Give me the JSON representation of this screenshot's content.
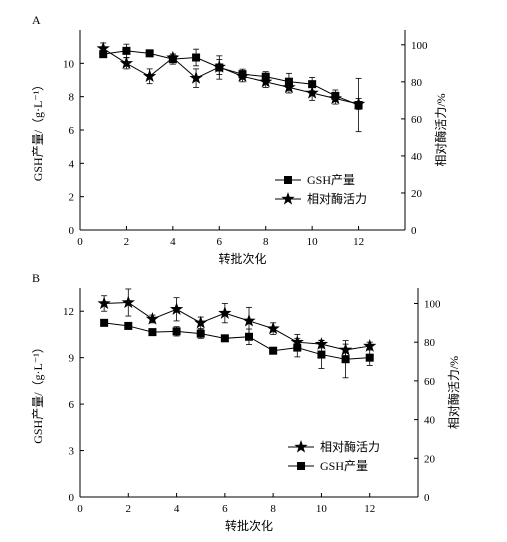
{
  "chart_data": [
    {
      "panel_label": "A",
      "type": "line",
      "xlabel": "转批次化",
      "ylabel": "GSH产量/（g·L⁻¹）",
      "y2label": "相对酶活力/%",
      "xlim": [
        0,
        14
      ],
      "ylim": [
        0,
        12
      ],
      "y2lim": [
        0,
        108
      ],
      "xticks": [
        0,
        2,
        4,
        6,
        8,
        10,
        12
      ],
      "yticks": [
        0,
        2,
        4,
        6,
        8,
        10
      ],
      "y2ticks": [
        0,
        20,
        40,
        60,
        80,
        100
      ],
      "legend_position": "bottom-right",
      "series": [
        {
          "name": "GSH产量",
          "axis": "left",
          "marker": "square",
          "x": [
            1,
            2,
            3,
            4,
            5,
            6,
            7,
            8,
            9,
            10,
            11,
            12
          ],
          "values": [
            10.55,
            10.75,
            10.6,
            10.25,
            10.35,
            9.75,
            9.35,
            9.2,
            8.9,
            8.75,
            8.05,
            7.5
          ],
          "errors": [
            0.2,
            0.4,
            0.1,
            0.3,
            0.5,
            0.7,
            0.3,
            0.3,
            0.5,
            0.4,
            0.35,
            1.6
          ]
        },
        {
          "name": "相对酶活力",
          "axis": "right",
          "marker": "star",
          "x": [
            1,
            2,
            3,
            4,
            5,
            6,
            7,
            8,
            9,
            10,
            11,
            12
          ],
          "values": [
            98,
            90,
            83,
            93,
            82,
            88,
            83,
            80,
            77,
            74,
            71,
            68
          ],
          "errors": [
            3,
            3,
            4,
            2,
            5,
            4,
            3,
            3,
            3,
            4,
            3,
            3
          ]
        }
      ]
    },
    {
      "panel_label": "B",
      "type": "line",
      "xlabel": "转批次化",
      "ylabel": "GSH产量/（g·L⁻¹）",
      "y2label": "相对酶活力/%",
      "xlim": [
        0,
        14
      ],
      "ylim": [
        0,
        13.5
      ],
      "y2lim": [
        0,
        108
      ],
      "xticks": [
        0,
        2,
        4,
        6,
        8,
        10,
        12
      ],
      "yticks": [
        0,
        3,
        6,
        9,
        12
      ],
      "y2ticks": [
        0,
        20,
        40,
        60,
        80,
        100
      ],
      "legend_position": "bottom-right",
      "series": [
        {
          "name": "相对酶活力",
          "axis": "right",
          "marker": "star",
          "x": [
            1,
            2,
            3,
            4,
            5,
            6,
            7,
            8,
            9,
            10,
            11,
            12
          ],
          "values": [
            100,
            100.5,
            92,
            97,
            90,
            95,
            91,
            87,
            80,
            79,
            76,
            78
          ],
          "errors": [
            4,
            7,
            2,
            6,
            3,
            5,
            7,
            3,
            4,
            2,
            3,
            2
          ]
        },
        {
          "name": "GSH产量",
          "axis": "left",
          "marker": "square",
          "x": [
            1,
            2,
            3,
            4,
            5,
            6,
            7,
            8,
            9,
            10,
            11,
            12
          ],
          "values": [
            11.25,
            11.05,
            10.65,
            10.7,
            10.55,
            10.25,
            10.35,
            9.45,
            9.65,
            9.2,
            8.9,
            9.0
          ],
          "errors": [
            0.1,
            0.1,
            0.1,
            0.3,
            0.3,
            0.2,
            0.5,
            0.1,
            0.6,
            0.9,
            1.2,
            0.5
          ]
        }
      ]
    }
  ]
}
